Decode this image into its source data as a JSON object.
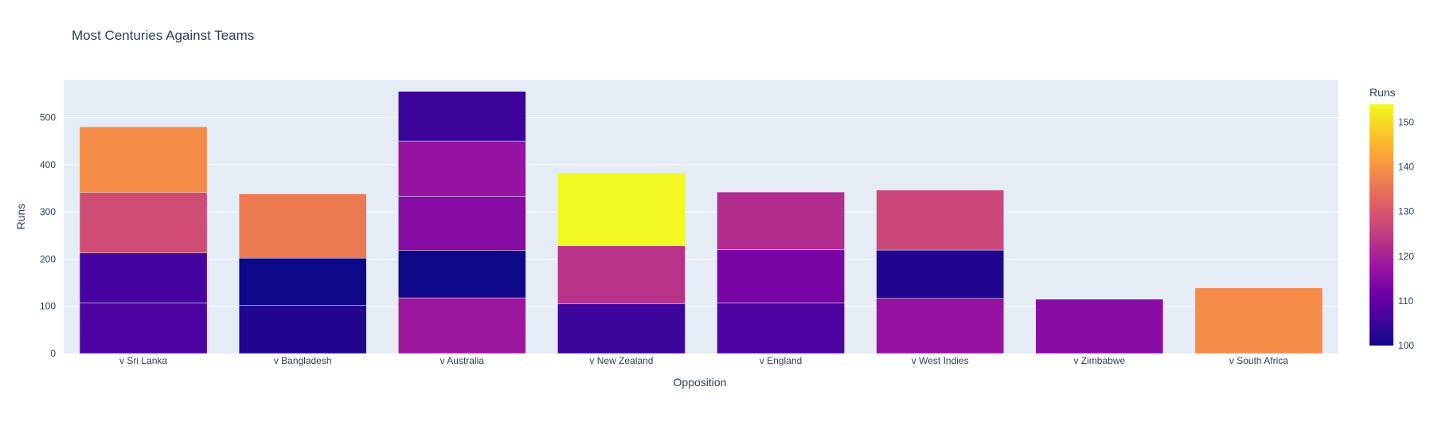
{
  "chart_data": {
    "type": "bar",
    "barmode": "stack",
    "title": "Most Centuries Against Teams",
    "xlabel": "Opposition",
    "ylabel": "Runs",
    "ylim": [
      0,
      580
    ],
    "yticks": [
      0,
      100,
      200,
      300,
      400,
      500
    ],
    "grid": true,
    "categories": [
      "v Sri Lanka",
      "v Bangladesh",
      "v Australia",
      "v New Zealand",
      "v England",
      "v West Indies",
      "v Zimbabwe",
      "v South Africa"
    ],
    "stacks": [
      [
        107,
        106,
        128,
        139
      ],
      [
        102,
        100,
        136
      ],
      [
        118,
        100,
        115,
        117,
        105
      ],
      [
        105,
        123,
        154
      ],
      [
        107,
        113,
        122
      ],
      [
        117,
        102,
        127
      ],
      [
        115
      ],
      [
        139
      ]
    ],
    "colorbar": {
      "title": "Runs",
      "min": 100,
      "max": 154,
      "ticks": [
        100,
        110,
        120,
        130,
        140,
        150
      ]
    },
    "colorscale": [
      "#0d0887",
      "#46039f",
      "#7201a8",
      "#9c179e",
      "#bd3786",
      "#d8576b",
      "#ed7953",
      "#fb9f3a",
      "#fdca26",
      "#f0f921"
    ],
    "plot_bg": "#e5ecf6"
  }
}
